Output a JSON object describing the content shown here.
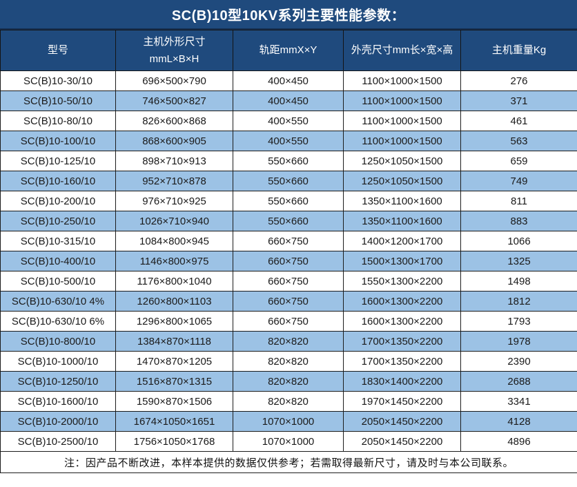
{
  "title": "SC(B)10型10KV系列主要性能参数：",
  "table": {
    "columns": [
      {
        "label": "型号"
      },
      {
        "label": "主机外形尺寸\nmmL×B×H"
      },
      {
        "label": "轨距mmX×Y"
      },
      {
        "label": "外壳尺寸mm长×宽×高"
      },
      {
        "label": "主机重量Kg"
      }
    ],
    "rows": [
      [
        "SC(B)10-30/10",
        "696×500×790",
        "400×450",
        "1100×1000×1500",
        "276"
      ],
      [
        "SC(B)10-50/10",
        "746×500×827",
        "400×450",
        "1100×1000×1500",
        "371"
      ],
      [
        "SC(B)10-80/10",
        "826×600×868",
        "400×550",
        "1100×1000×1500",
        "461"
      ],
      [
        "SC(B)10-100/10",
        "868×600×905",
        "400×550",
        "1100×1000×1500",
        "563"
      ],
      [
        "SC(B)10-125/10",
        "898×710×913",
        "550×660",
        "1250×1050×1500",
        "659"
      ],
      [
        "SC(B)10-160/10",
        "952×710×878",
        "550×660",
        "1250×1050×1500",
        "749"
      ],
      [
        "SC(B)10-200/10",
        "976×710×925",
        "550×660",
        "1350×1100×1600",
        "811"
      ],
      [
        "SC(B)10-250/10",
        "1026×710×940",
        "550×660",
        "1350×1100×1600",
        "883"
      ],
      [
        "SC(B)10-315/10",
        "1084×800×945",
        "660×750",
        "1400×1200×1700",
        "1066"
      ],
      [
        "SC(B)10-400/10",
        "1146×800×975",
        "660×750",
        "1500×1300×1700",
        "1325"
      ],
      [
        "SC(B)10-500/10",
        "1176×800×1040",
        "660×750",
        "1550×1300×2200",
        "1498"
      ],
      [
        "SC(B)10-630/10 4%",
        "1260×800×1103",
        "660×750",
        "1600×1300×2200",
        "1812"
      ],
      [
        "SC(B)10-630/10 6%",
        "1296×800×1065",
        "660×750",
        "1600×1300×2200",
        "1793"
      ],
      [
        "SC(B)10-800/10",
        "1384×870×1118",
        "820×820",
        "1700×1350×2200",
        "1978"
      ],
      [
        "SC(B)10-1000/10",
        "1470×870×1205",
        "820×820",
        "1700×1350×2200",
        "2390"
      ],
      [
        "SC(B)10-1250/10",
        "1516×870×1315",
        "820×820",
        "1830×1400×2200",
        "2688"
      ],
      [
        "SC(B)10-1600/10",
        "1590×870×1506",
        "820×820",
        "1970×1450×2200",
        "3341"
      ],
      [
        "SC(B)10-2000/10",
        "1674×1050×1651",
        "1070×1000",
        "2050×1450×2200",
        "4128"
      ],
      [
        "SC(B)10-2500/10",
        "1756×1050×1768",
        "1070×1000",
        "2050×1450×2200",
        "4896"
      ]
    ]
  },
  "note": "注：因产品不断改进，本样本提供的数据仅供参考；若需取得最新尺寸，请及时与本公司联系。",
  "colors": {
    "header_bg": "#1F4A7D",
    "row_alt_bg": "#9CC2E5",
    "row_bg": "#FFFFFF",
    "border": "#1B1B1B",
    "header_text": "#FFFFFF",
    "body_text": "#1A1A1A"
  }
}
